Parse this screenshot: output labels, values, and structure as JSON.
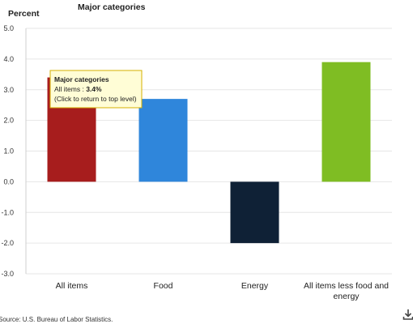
{
  "chart_data": {
    "type": "bar",
    "title": "Major categories",
    "ylabel": "Percent",
    "xlabel": "",
    "ylim": [
      -3.0,
      5.0
    ],
    "yticks": [
      "5.0",
      "4.0",
      "3.0",
      "2.0",
      "1.0",
      "0.0",
      "-1.0",
      "-2.0",
      "-3.0"
    ],
    "ytick_values": [
      5,
      4,
      3,
      2,
      1,
      0,
      -1,
      -2,
      -3
    ],
    "grid": true,
    "legend": "none",
    "categories": [
      {
        "label_lines": [
          "All items"
        ],
        "value": 3.4,
        "color": "#a71d1d"
      },
      {
        "label_lines": [
          "Food"
        ],
        "value": 2.7,
        "color": "#2f86db"
      },
      {
        "label_lines": [
          "Energy"
        ],
        "value": -2.0,
        "color": "#0f2136"
      },
      {
        "label_lines": [
          "All items less food and",
          "energy"
        ],
        "value": 3.9,
        "color": "#7fbd23"
      }
    ],
    "tooltip": {
      "title": "Major categories",
      "line_label": "All items : ",
      "line_value": "3.4%",
      "hint": "(Click to return to top level)"
    },
    "source": "Source: U.S. Bureau of Labor Statistics."
  },
  "icons": {
    "download": "download-icon"
  }
}
